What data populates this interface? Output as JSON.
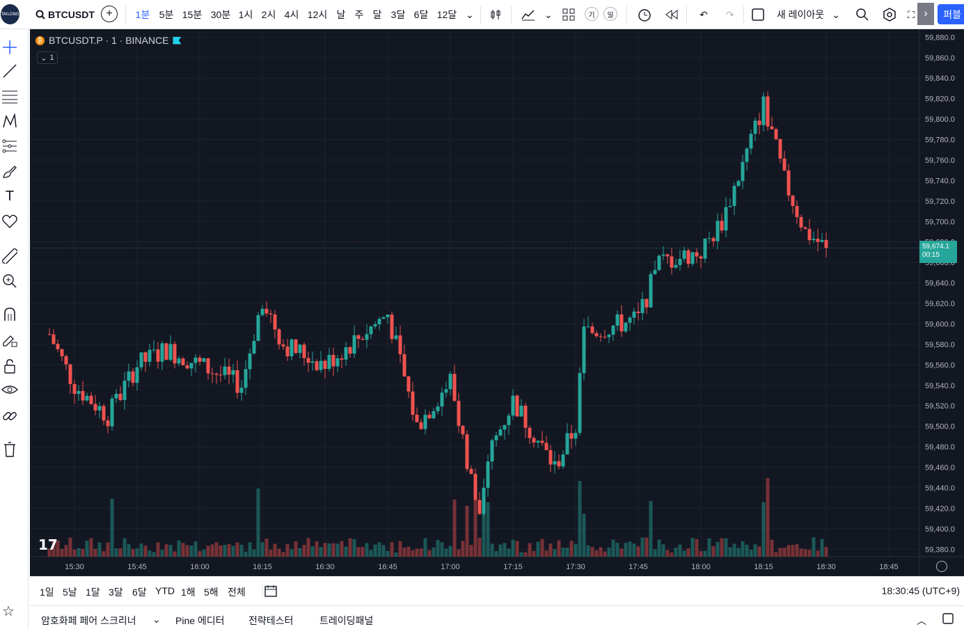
{
  "toolbar": {
    "logo_text": "TAILONG",
    "symbol": "BTCUSDT",
    "intervals": [
      "1분",
      "5분",
      "15분",
      "30분",
      "1시",
      "2시",
      "4시",
      "12시",
      "날",
      "주",
      "달",
      "3달",
      "6달",
      "12달"
    ],
    "active_interval": "1분",
    "circle_btn_1": "기",
    "circle_btn_2": "일",
    "layout_label": "새 레이아웃",
    "publish_label": "퍼블"
  },
  "legend": {
    "title": "BTCUSDT.P · 1 · BINANCE",
    "collapse_count": "1"
  },
  "last_price": {
    "value": "59,674.1",
    "countdown": "00:15"
  },
  "colors": {
    "up": "#26a69a",
    "down": "#ef5350",
    "background": "#131722",
    "grid": "#1e222d",
    "text": "#b2b5be",
    "accent": "#2962ff"
  },
  "ranges": [
    "1일",
    "5날",
    "1달",
    "3달",
    "6달",
    "YTD",
    "1해",
    "5해",
    "전체"
  ],
  "clock": "18:30:45 (UTC+9)",
  "bottom_tabs": [
    "암호화페 페어 스크리너",
    "Pine 에디터",
    "전략테스터",
    "트레이딩패널"
  ],
  "chart_data": {
    "type": "candlestick",
    "title": "BTCUSDT.P · 1 · BINANCE",
    "y_ticks": [
      59380,
      59400,
      59420,
      59440,
      59460,
      59480,
      59500,
      59520,
      59540,
      59560,
      59580,
      59600,
      59620,
      59640,
      59660,
      59680,
      59700,
      59720,
      59740,
      59760,
      59780,
      59800,
      59820,
      59840,
      59860,
      59880
    ],
    "x_ticks": [
      "15:30",
      "15:45",
      "16:00",
      "16:15",
      "16:30",
      "16:45",
      "17:00",
      "17:15",
      "17:30",
      "17:45",
      "18:00",
      "18:15",
      "18:30",
      "18:45"
    ],
    "ylim": [
      59370,
      59885
    ],
    "grid": true,
    "key_points": [
      {
        "time": "15:24",
        "price": 59590
      },
      {
        "time": "15:30",
        "price": 59540
      },
      {
        "time": "15:38",
        "price": 59510
      },
      {
        "time": "15:45",
        "price": 59560
      },
      {
        "time": "15:52",
        "price": 59575
      },
      {
        "time": "16:00",
        "price": 59560
      },
      {
        "time": "16:10",
        "price": 59540
      },
      {
        "time": "16:15",
        "price": 59625
      },
      {
        "time": "16:20",
        "price": 59580
      },
      {
        "time": "16:30",
        "price": 59560
      },
      {
        "time": "16:45",
        "price": 59610
      },
      {
        "time": "16:52",
        "price": 59500
      },
      {
        "time": "17:00",
        "price": 59545
      },
      {
        "time": "17:07",
        "price": 59410
      },
      {
        "time": "17:10",
        "price": 59480
      },
      {
        "time": "17:15",
        "price": 59525
      },
      {
        "time": "17:25",
        "price": 59460
      },
      {
        "time": "17:30",
        "price": 59500
      },
      {
        "time": "17:32",
        "price": 59590
      },
      {
        "time": "17:45",
        "price": 59605
      },
      {
        "time": "17:50",
        "price": 59660
      },
      {
        "time": "18:00",
        "price": 59670
      },
      {
        "time": "18:05",
        "price": 59700
      },
      {
        "time": "18:10",
        "price": 59755
      },
      {
        "time": "18:15",
        "price": 59815
      },
      {
        "time": "18:20",
        "price": 59740
      },
      {
        "time": "18:25",
        "price": 59690
      },
      {
        "time": "18:30",
        "price": 59674.1
      }
    ]
  }
}
